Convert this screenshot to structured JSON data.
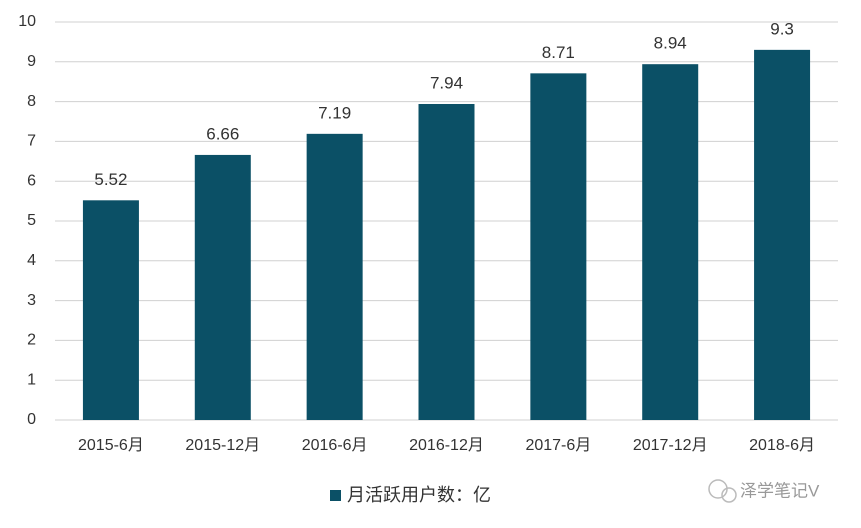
{
  "chart_data": {
    "type": "bar",
    "categories": [
      "2015-6月",
      "2015-12月",
      "2016-6月",
      "2016-12月",
      "2017-6月",
      "2017-12月",
      "2018-6月"
    ],
    "series": [
      {
        "name": "月活跃用户数：亿",
        "color": "#0b5066",
        "values": [
          5.52,
          6.66,
          7.19,
          7.94,
          8.71,
          8.94,
          9.3
        ]
      }
    ],
    "ylim": [
      0,
      10
    ],
    "yticks": [
      0,
      1,
      2,
      3,
      4,
      5,
      6,
      7,
      8,
      9,
      10
    ],
    "grid": true,
    "legend": "bottom"
  },
  "watermark": "泽学笔记V"
}
